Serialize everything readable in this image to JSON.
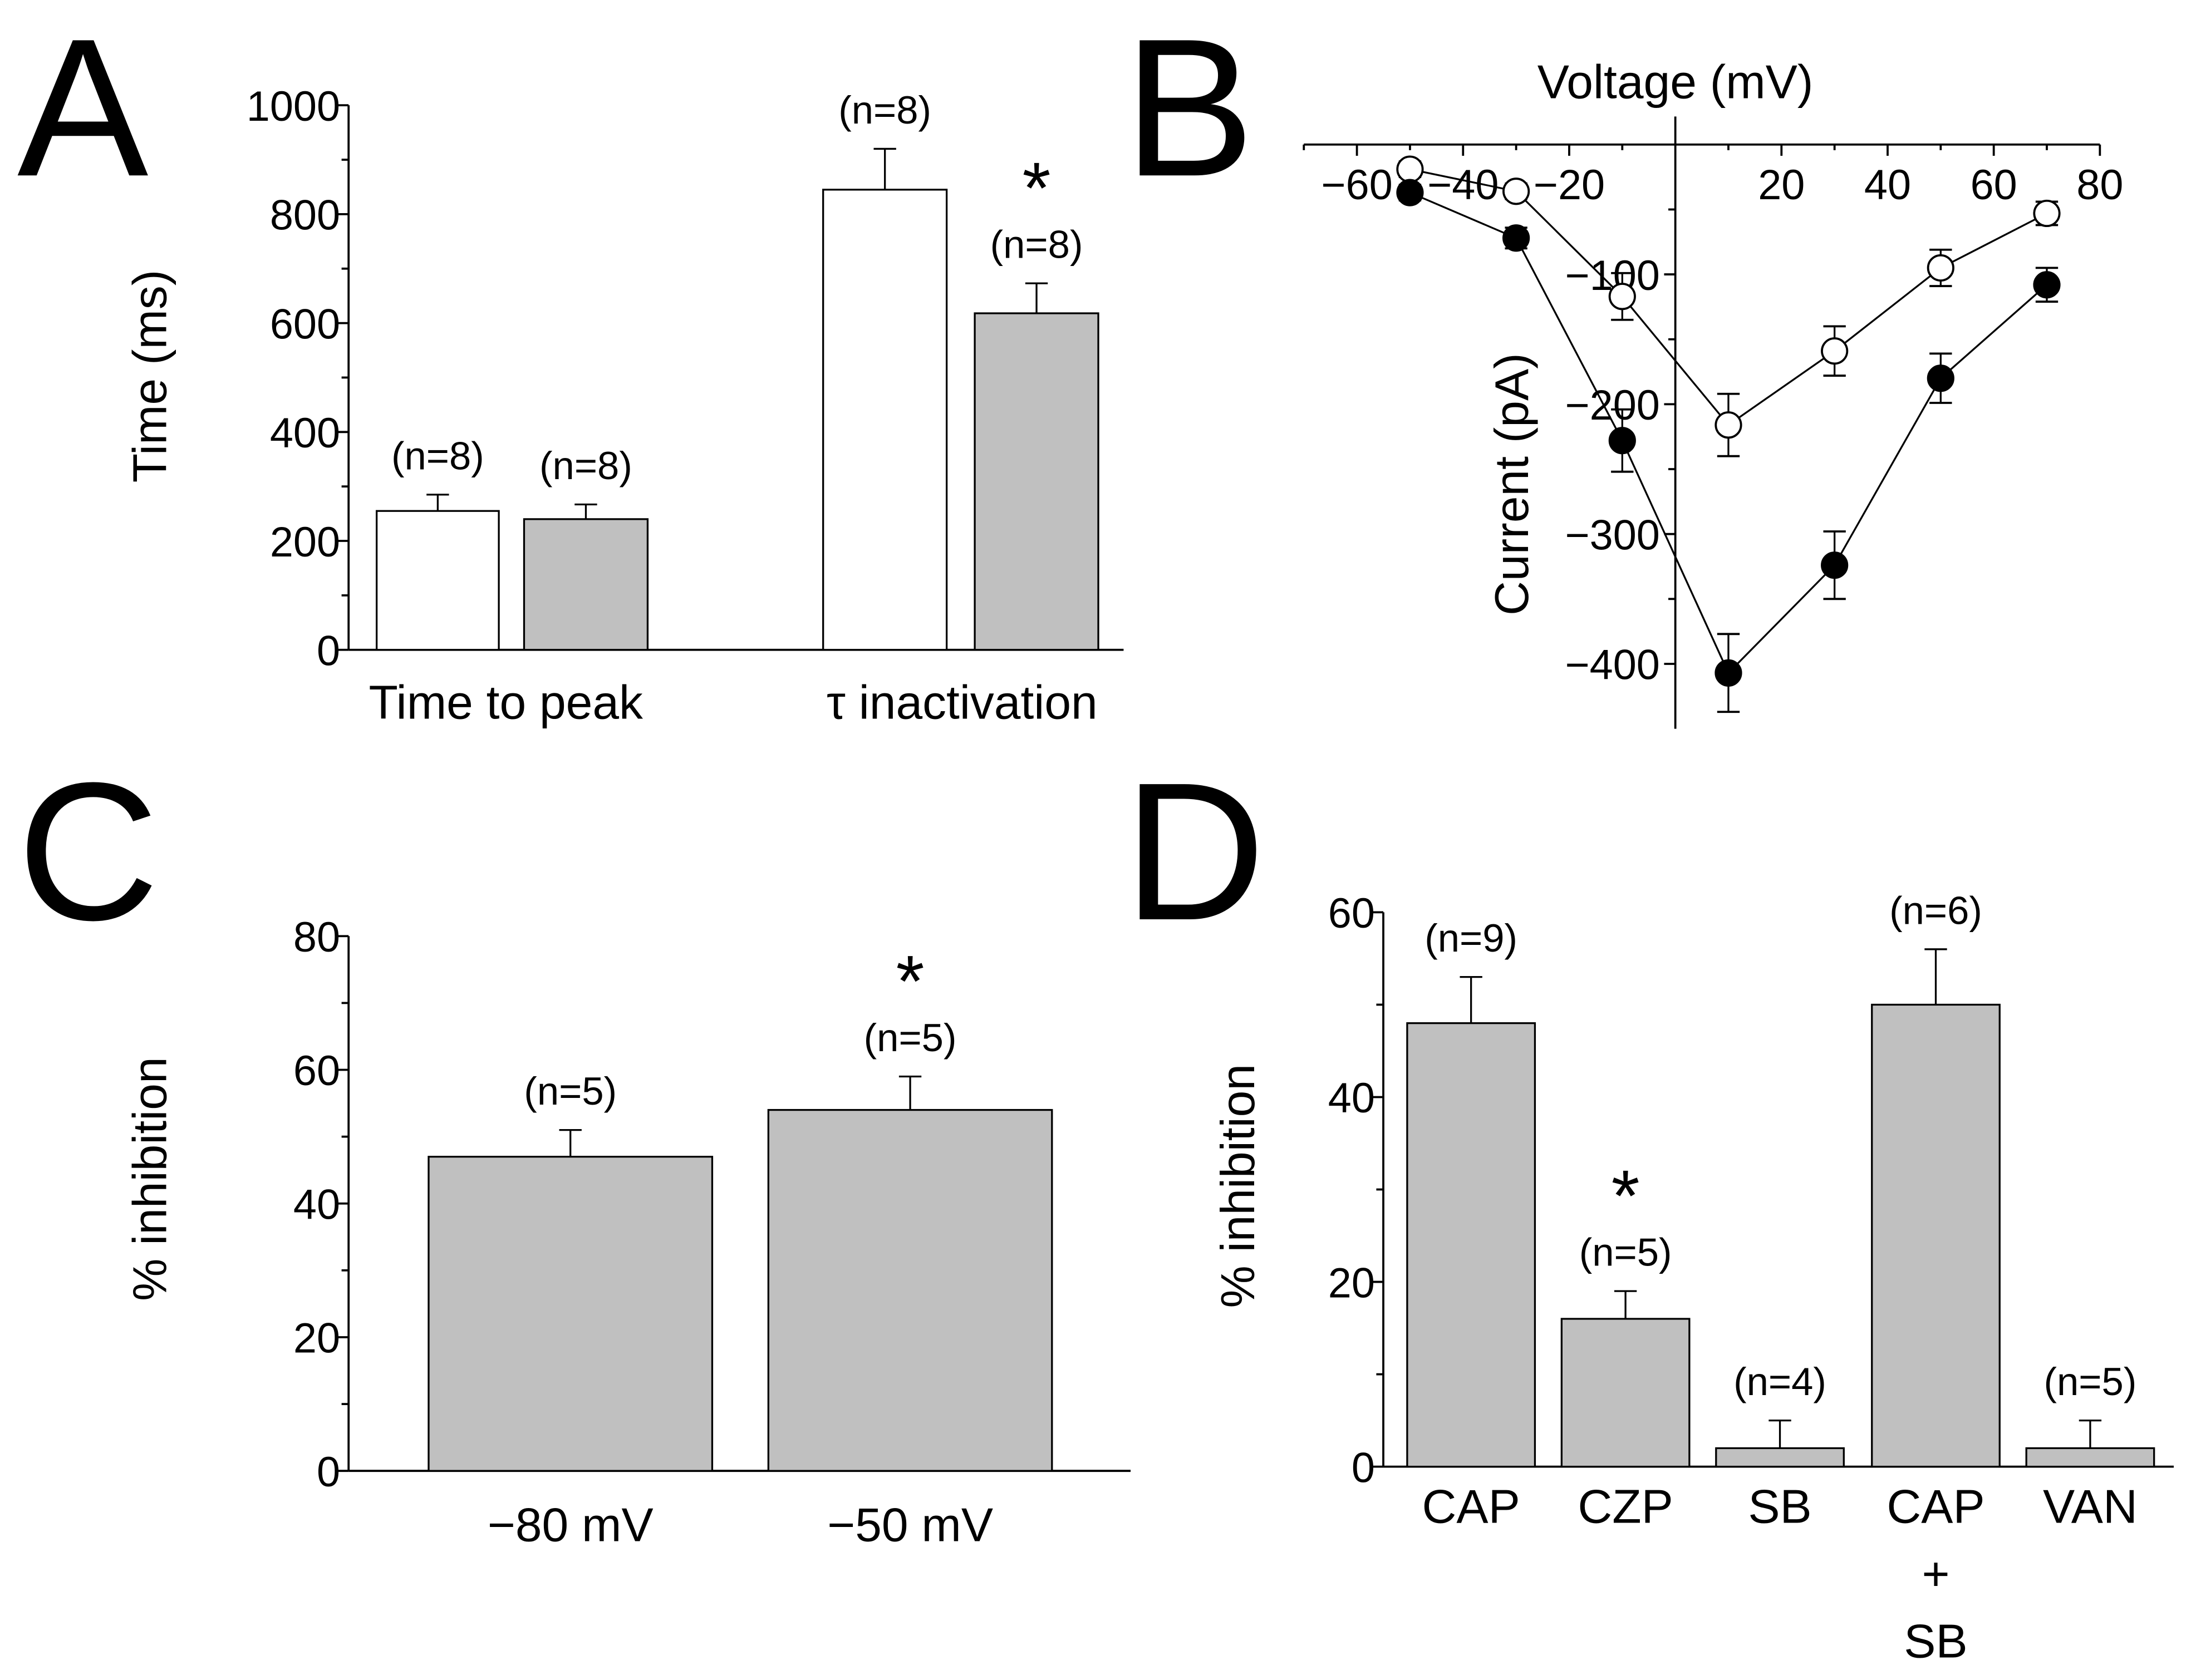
{
  "colors": {
    "control_bar": "#ffffff",
    "treated_bar": "#c0c0c0",
    "axis": "#000000"
  },
  "chart_data": [
    {
      "panel": "A",
      "type": "bar",
      "ylabel": "Time (ms)",
      "ylim": [
        0,
        1000
      ],
      "yticks": [
        "0",
        "200",
        "400",
        "600",
        "800",
        "1000"
      ],
      "groups": [
        "Time to peak",
        "τ inactivation"
      ],
      "bars": [
        {
          "group": 0,
          "value": 255,
          "error": 30,
          "fill": "#ffffff",
          "n": "(n=8)",
          "star": ""
        },
        {
          "group": 0,
          "value": 240,
          "error": 27,
          "fill": "#c0c0c0",
          "n": "(n=8)",
          "star": ""
        },
        {
          "group": 1,
          "value": 845,
          "error": 75,
          "fill": "#ffffff",
          "n": "(n=8)",
          "star": ""
        },
        {
          "group": 1,
          "value": 618,
          "error": 55,
          "fill": "#c0c0c0",
          "n": "(n=8)",
          "star": "*"
        }
      ]
    },
    {
      "panel": "B",
      "type": "scatter",
      "xlabel": "Voltage (mV)",
      "ylabel": "Current (pA)",
      "xlim": [
        -70,
        80
      ],
      "ylim": [
        -450,
        20
      ],
      "xticks": [
        "−60",
        "−40",
        "−20",
        "20",
        "40",
        "60",
        "80"
      ],
      "yticks": [
        "−100",
        "−200",
        "−300",
        "−400"
      ],
      "x": [
        -50,
        -30,
        -10,
        10,
        30,
        50,
        70
      ],
      "series": [
        {
          "marker": "open-circle",
          "values": [
            -19,
            -36,
            -117,
            -216,
            -159,
            -95,
            -53
          ],
          "errors": [
            6,
            6,
            18,
            24,
            19,
            14,
            9
          ]
        },
        {
          "marker": "filled-circle",
          "values": [
            -37,
            -72,
            -228,
            -407,
            -324,
            -180,
            -108
          ],
          "errors": [
            6,
            8,
            24,
            30,
            26,
            19,
            13
          ]
        }
      ]
    },
    {
      "panel": "C",
      "type": "bar",
      "ylabel": "% inhibition",
      "ylim": [
        0,
        80
      ],
      "yticks": [
        "0",
        "20",
        "40",
        "60",
        "80"
      ],
      "bars": [
        {
          "label": "−80 mV",
          "value": 47,
          "error": 4,
          "fill": "#c0c0c0",
          "n": "(n=5)",
          "star": ""
        },
        {
          "label": "−50 mV",
          "value": 54,
          "error": 5,
          "fill": "#c0c0c0",
          "n": "(n=5)",
          "star": "*"
        }
      ]
    },
    {
      "panel": "D",
      "type": "bar",
      "ylabel": "% inhibition",
      "ylim": [
        0,
        60
      ],
      "yticks": [
        "0",
        "20",
        "40",
        "60"
      ],
      "bars": [
        {
          "label": [
            "CAP"
          ],
          "value": 48,
          "error": 5,
          "fill": "#c0c0c0",
          "n": "(n=9)",
          "star": ""
        },
        {
          "label": [
            "CZP"
          ],
          "value": 16,
          "error": 3,
          "fill": "#c0c0c0",
          "n": "(n=5)",
          "star": "*"
        },
        {
          "label": [
            "SB"
          ],
          "value": 2,
          "error": 3,
          "fill": "#c0c0c0",
          "n": "(n=4)",
          "star": ""
        },
        {
          "label": [
            "CAP",
            "+",
            "SB"
          ],
          "value": 50,
          "error": 6,
          "fill": "#c0c0c0",
          "n": "(n=6)",
          "star": ""
        },
        {
          "label": [
            "VAN"
          ],
          "value": 2,
          "error": 3,
          "fill": "#c0c0c0",
          "n": "(n=5)",
          "star": ""
        }
      ]
    }
  ]
}
